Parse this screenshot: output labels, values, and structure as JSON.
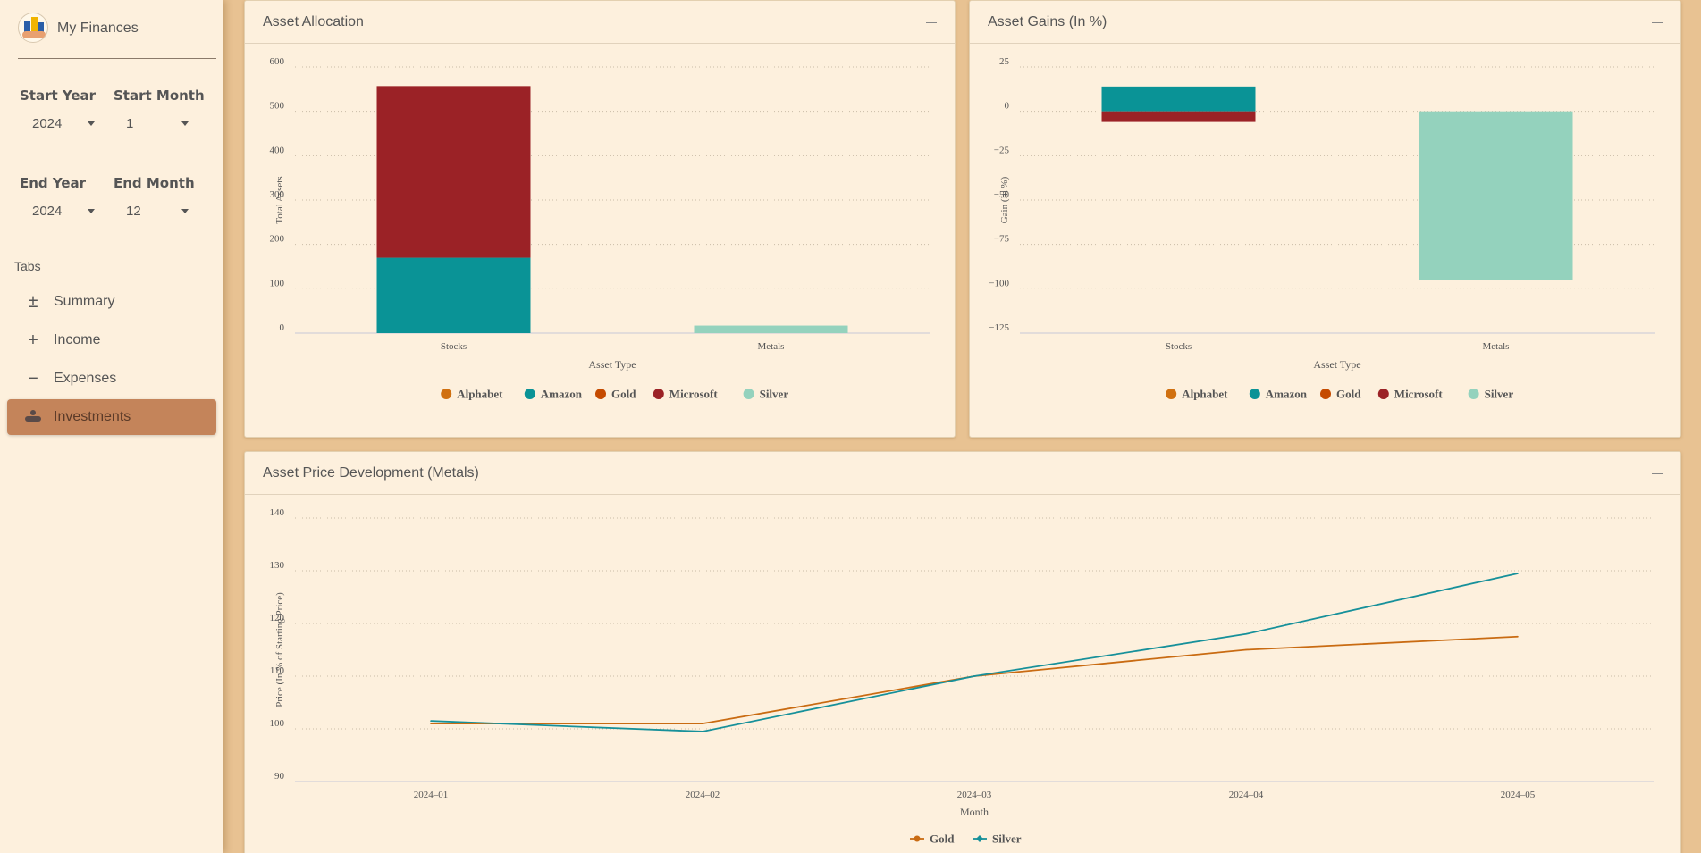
{
  "brand": {
    "name": "My Finances"
  },
  "filters": {
    "start_year": {
      "label": "Start Year",
      "value": "2024"
    },
    "start_month": {
      "label": "Start Month",
      "value": "1"
    },
    "end_year": {
      "label": "End Year",
      "value": "2024"
    },
    "end_month": {
      "label": "End Month",
      "value": "12"
    }
  },
  "tabs": {
    "header": "Tabs",
    "items": [
      {
        "label": "Summary",
        "icon": "plus-minus-icon"
      },
      {
        "label": "Income",
        "icon": "plus-icon"
      },
      {
        "label": "Expenses",
        "icon": "minus-icon"
      },
      {
        "label": "Investments",
        "icon": "hand-coin-icon",
        "active": true
      }
    ]
  },
  "cards": {
    "allocation": {
      "title": "Asset Allocation"
    },
    "gains": {
      "title": "Asset Gains (In %)"
    },
    "prices": {
      "title": "Asset Price Development (Metals)"
    }
  },
  "colors": {
    "Alphabet": "#d07010",
    "Amazon": "#0a9396",
    "Gold": "#c54b00",
    "Microsoft": "#9b2226",
    "Silver": "#94d2bd"
  },
  "chart_data": [
    {
      "id": "allocation",
      "type": "bar",
      "stacked": true,
      "categories": [
        "Stocks",
        "Metals"
      ],
      "series": [
        {
          "name": "Alphabet",
          "values": [
            0,
            0
          ]
        },
        {
          "name": "Amazon",
          "values": [
            170,
            0
          ]
        },
        {
          "name": "Gold",
          "values": [
            0,
            0
          ]
        },
        {
          "name": "Microsoft",
          "values": [
            387,
            0
          ]
        },
        {
          "name": "Silver",
          "values": [
            0,
            17
          ]
        }
      ],
      "xlabel": "Asset Type",
      "ylabel": "Total Assets",
      "ylim": [
        0,
        600
      ],
      "yticks": [
        0,
        100,
        200,
        300,
        400,
        500,
        600
      ],
      "legend": "bottom",
      "grid": true
    },
    {
      "id": "gains",
      "type": "bar",
      "stacked": true,
      "categories": [
        "Stocks",
        "Metals"
      ],
      "series": [
        {
          "name": "Alphabet",
          "values": [
            0,
            0
          ]
        },
        {
          "name": "Amazon",
          "values": [
            14,
            0
          ]
        },
        {
          "name": "Gold",
          "values": [
            0,
            0
          ]
        },
        {
          "name": "Microsoft",
          "values": [
            -6,
            0
          ]
        },
        {
          "name": "Silver",
          "values": [
            0,
            -95
          ]
        }
      ],
      "xlabel": "Asset Type",
      "ylabel": "Gain (In %)",
      "ylim": [
        -125,
        25
      ],
      "yticks": [
        25,
        0,
        -25,
        -50,
        -75,
        -100,
        -125
      ],
      "yticklabels": [
        "25",
        "0",
        "−25",
        "−50",
        "−75",
        "−100",
        "−125"
      ],
      "legend": "bottom",
      "grid": true
    },
    {
      "id": "prices",
      "type": "line",
      "x": [
        "2024–01",
        "2024–02",
        "2024–03",
        "2024–04",
        "2024–05"
      ],
      "series": [
        {
          "name": "Gold",
          "values": [
            101,
            101,
            110,
            115,
            117.5
          ]
        },
        {
          "name": "Silver",
          "values": [
            101.5,
            99.5,
            110,
            118,
            129.5
          ]
        }
      ],
      "xlabel": "Month",
      "ylabel": "Price (In % of Starting Price)",
      "ylim": [
        90,
        140
      ],
      "yticks": [
        90,
        100,
        110,
        120,
        130,
        140
      ],
      "legend": "bottom",
      "grid": true
    }
  ]
}
